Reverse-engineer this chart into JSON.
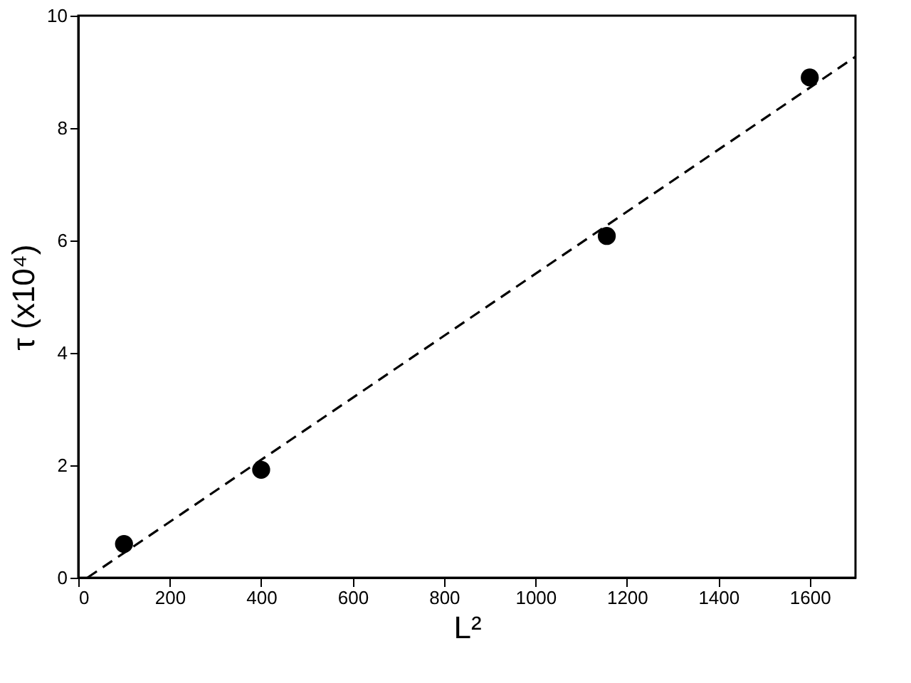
{
  "chart_data": {
    "type": "scatter",
    "xlabel": "L²",
    "ylabel": "τ (x10⁴)",
    "xlim": [
      0,
      1700
    ],
    "xticks": [
      0,
      200,
      400,
      600,
      800,
      1000,
      1200,
      1400,
      1600
    ],
    "ylim": [
      0,
      10
    ],
    "yticks": [
      0,
      2,
      4,
      6,
      8,
      10
    ],
    "grid": false,
    "series": [
      {
        "color": "#000000",
        "marker": "circle",
        "x": [
          100,
          400,
          1156,
          1600
        ],
        "values": [
          0.6,
          1.92,
          6.08,
          8.9
        ]
      },
      {
        "type": "line",
        "color": "#000000",
        "line_style": "dashed",
        "x": [
          20,
          1700
        ],
        "values": [
          0,
          9.27
        ]
      }
    ]
  }
}
